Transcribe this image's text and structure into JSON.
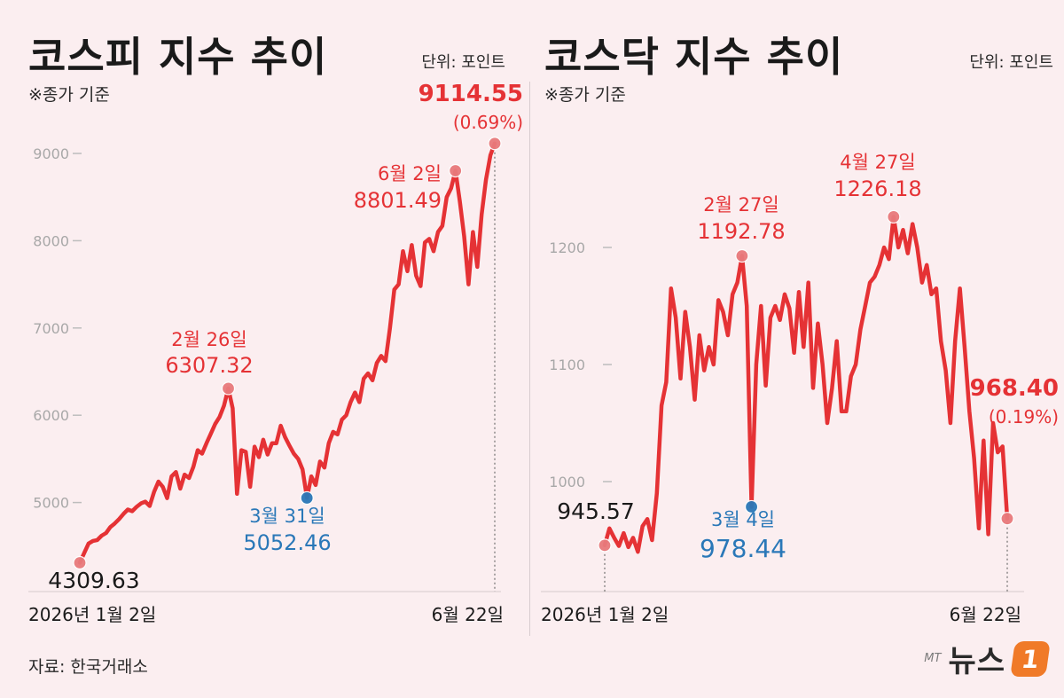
{
  "unit_label": "단위: 포인트",
  "note": "※종가 기준",
  "source": "자료: 한국거래소",
  "logo": {
    "prefix": "MT",
    "name": "뉴스",
    "badge": "1"
  },
  "colors": {
    "line": "#e53235",
    "low": "#2a78b8",
    "end_point": "#e97a7c",
    "axis": "#bdbdbd"
  },
  "chart_data": [
    {
      "type": "line",
      "title": "코스피 지수 추이",
      "x_start_label": "2026년 1월 2일",
      "x_end_label": "6월 22일",
      "ylim": [
        4000,
        9500
      ],
      "yticks": [
        5000,
        6000,
        7000,
        8000,
        9000
      ],
      "values": [
        4309.63,
        4420,
        4530,
        4560,
        4570,
        4620,
        4650,
        4720,
        4760,
        4810,
        4870,
        4920,
        4900,
        4950,
        4990,
        5010,
        4960,
        5120,
        5240,
        5180,
        5050,
        5300,
        5350,
        5160,
        5320,
        5280,
        5410,
        5600,
        5560,
        5680,
        5790,
        5900,
        5980,
        6110,
        6307.32,
        6080,
        5100,
        5600,
        5580,
        5180,
        5640,
        5520,
        5720,
        5550,
        5680,
        5680,
        5880,
        5750,
        5650,
        5560,
        5500,
        5380,
        5052.46,
        5300,
        5200,
        5470,
        5400,
        5680,
        5810,
        5780,
        5950,
        6000,
        6150,
        6260,
        6150,
        6420,
        6480,
        6400,
        6600,
        6680,
        6620,
        7000,
        7440,
        7500,
        7880,
        7650,
        7950,
        7600,
        7480,
        7980,
        8020,
        7880,
        8100,
        8170,
        8500,
        8600,
        8801.49,
        8450,
        8050,
        7500,
        8100,
        7700,
        8300,
        8700,
        8980,
        9114.55
      ],
      "points": [
        {
          "role": "start",
          "label_value": "4309.63"
        },
        {
          "role": "high",
          "label_date": "2월 26일",
          "label_value": "6307.32"
        },
        {
          "role": "low",
          "label_date": "3월 31일",
          "label_value": "5052.46"
        },
        {
          "role": "high",
          "label_date": "6월 2일",
          "label_value": "8801.49"
        },
        {
          "role": "end",
          "label_value": "9114.55",
          "label_change": "(0.69%)"
        }
      ]
    },
    {
      "type": "line",
      "title": "코스닥 지수 추이",
      "x_start_label": "2026년 1월 2일",
      "x_end_label": "6월 22일",
      "ylim": [
        900,
        1250
      ],
      "yticks": [
        1000,
        1100,
        1200
      ],
      "values": [
        945.57,
        960,
        952,
        945,
        956,
        944,
        952,
        940,
        962,
        968,
        950,
        990,
        1065,
        1085,
        1165,
        1140,
        1088,
        1145,
        1115,
        1070,
        1125,
        1095,
        1115,
        1100,
        1155,
        1145,
        1125,
        1160,
        1170,
        1192.78,
        1150,
        978.44,
        1100,
        1150,
        1082,
        1140,
        1150,
        1138,
        1160,
        1148,
        1110,
        1162,
        1115,
        1170,
        1080,
        1135,
        1100,
        1050,
        1080,
        1120,
        1060,
        1060,
        1090,
        1100,
        1130,
        1150,
        1170,
        1175,
        1185,
        1200,
        1190,
        1226.18,
        1200,
        1215,
        1195,
        1220,
        1200,
        1170,
        1185,
        1160,
        1165,
        1120,
        1095,
        1050,
        1120,
        1165,
        1115,
        1060,
        1020,
        960,
        1035,
        955,
        1050,
        1025,
        1030,
        968.4
      ],
      "points": [
        {
          "role": "start",
          "label_value": "945.57"
        },
        {
          "role": "high",
          "label_date": "2월 27일",
          "label_value": "1192.78"
        },
        {
          "role": "low",
          "label_date": "3월 4일",
          "label_value": "978.44"
        },
        {
          "role": "high",
          "label_date": "4월 27일",
          "label_value": "1226.18"
        },
        {
          "role": "end",
          "label_value": "968.40",
          "label_change": "(0.19%)"
        }
      ]
    }
  ]
}
